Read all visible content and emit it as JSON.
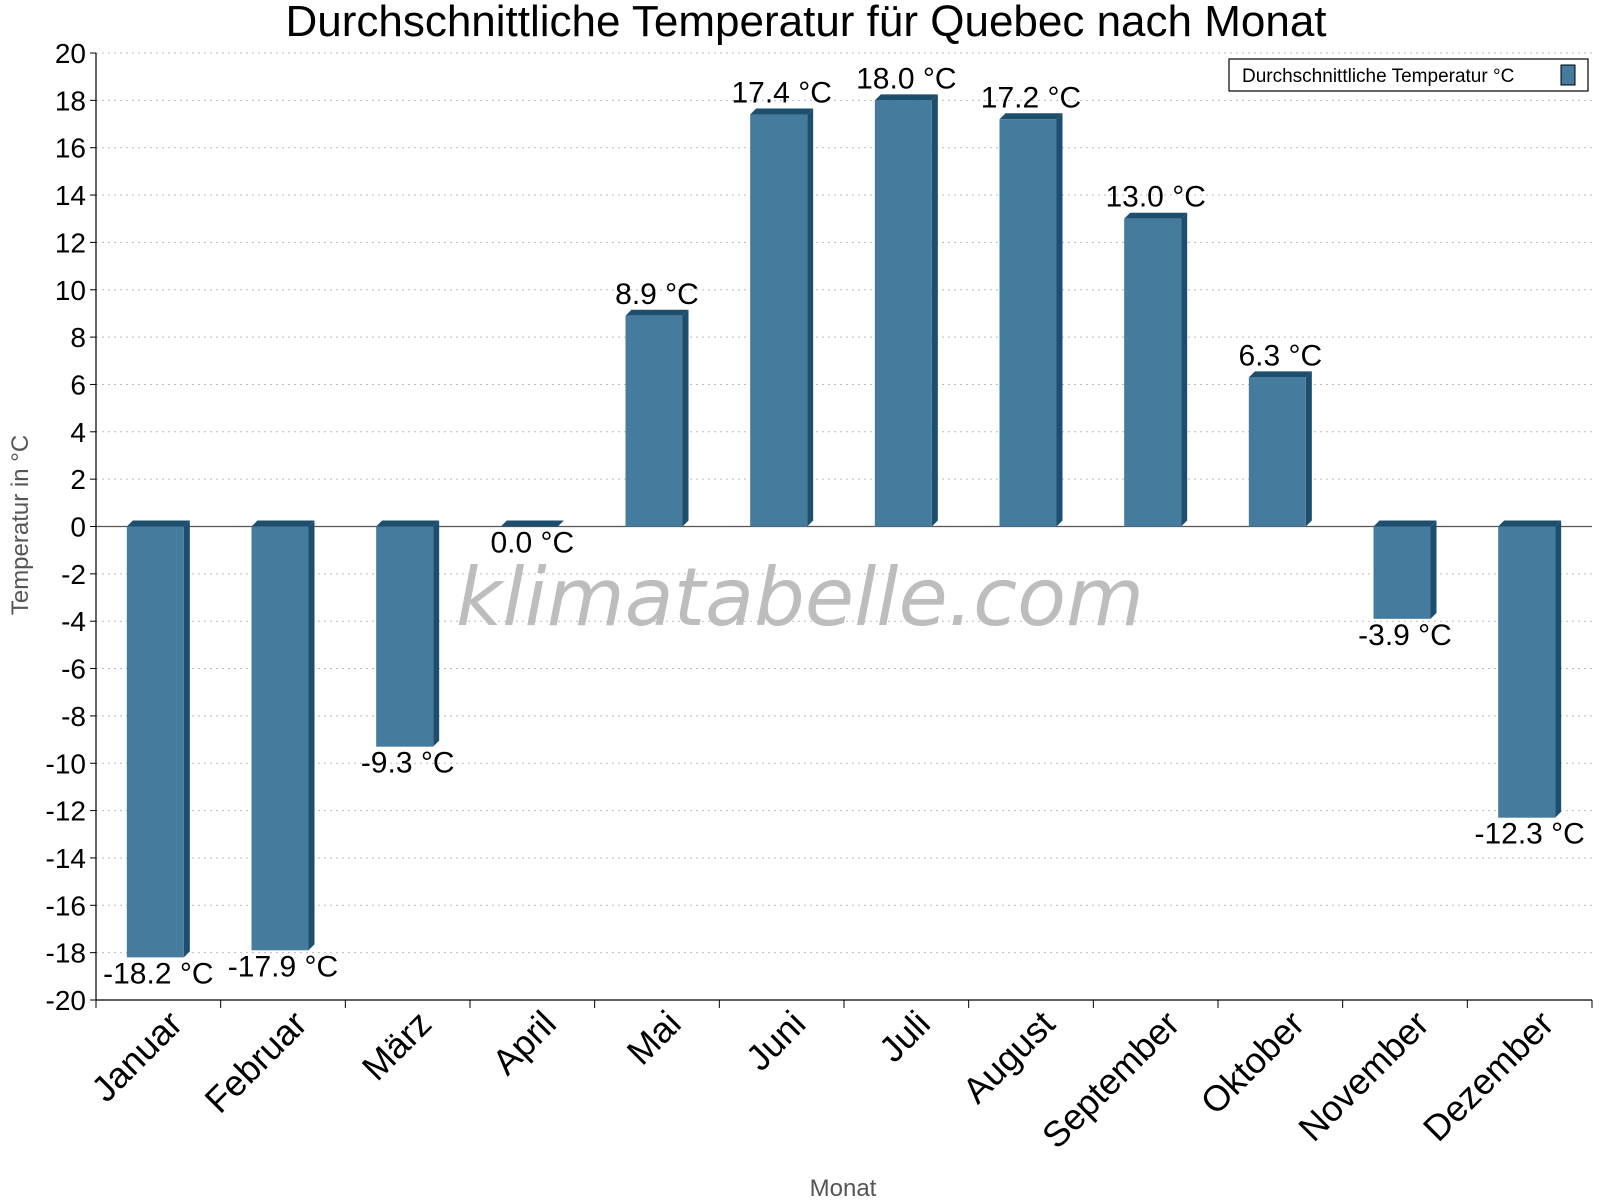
{
  "watermark": "klimatabelle.com",
  "colors": {
    "bar": "#457b9d",
    "bar_dark": "#1d4e6e",
    "grid": "#bbbbbb"
  },
  "chart_data": {
    "type": "bar",
    "title": "Durchschnittliche Temperatur für Quebec nach Monat",
    "xlabel": "Monat",
    "ylabel": "Temperatur in °C",
    "ylim": [
      -20,
      20
    ],
    "yticks": [
      20,
      18,
      16,
      14,
      12,
      10,
      8,
      6,
      4,
      2,
      0,
      -2,
      -4,
      -6,
      -8,
      -10,
      -12,
      -14,
      -16,
      -18,
      -20
    ],
    "categories": [
      "Januar",
      "Februar",
      "März",
      "April",
      "Mai",
      "Juni",
      "Juli",
      "August",
      "September",
      "Oktober",
      "November",
      "Dezember"
    ],
    "series": [
      {
        "name": "Durchschnittliche Temperatur °C",
        "values": [
          -18.2,
          -17.9,
          -9.3,
          0.0,
          8.9,
          17.4,
          18.0,
          17.2,
          13.0,
          6.3,
          -3.9,
          -12.3
        ],
        "labels": [
          "-18.2 °C",
          "-17.9 °C",
          "-9.3 °C",
          "0.0 °C",
          "8.9 °C",
          "17.4 °C",
          "18.0 °C",
          "17.2 °C",
          "13.0 °C",
          "6.3 °C",
          "-3.9 °C",
          "-12.3 °C"
        ]
      }
    ],
    "grid": true,
    "legend_position": "top-right"
  }
}
